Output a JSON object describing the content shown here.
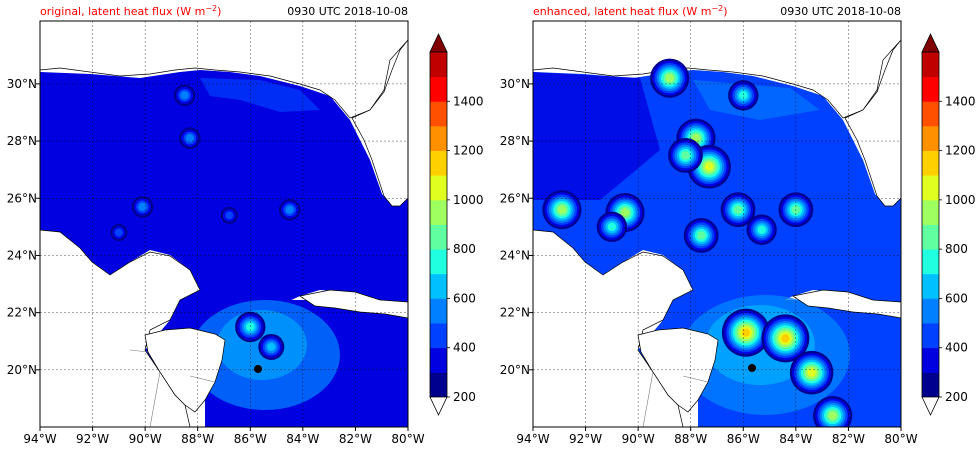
{
  "chart_data": [
    {
      "type": "heatmap",
      "title_left": "original, latent heat flux (W m",
      "title_left_exp": "−2",
      "title_left_end": ")",
      "title_right": "0930 UTC 2018-10-08",
      "xlabel": "",
      "ylabel": "",
      "x_ticks": [
        "94°W",
        "92°W",
        "90°W",
        "88°W",
        "86°W",
        "84°W",
        "82°W",
        "80°W"
      ],
      "y_ticks": [
        "20°N",
        "22°N",
        "24°N",
        "26°N",
        "28°N",
        "30°N"
      ],
      "lon_range": [
        -94,
        -80
      ],
      "lat_range": [
        18.0,
        32.2
      ],
      "grid": true,
      "colorbar": {
        "levels": [
          200,
          300,
          400,
          500,
          600,
          700,
          800,
          900,
          1000,
          1100,
          1200,
          1300,
          1400,
          1500
        ],
        "tick_labels": [
          "200",
          "400",
          "600",
          "800",
          "1000",
          "1200",
          "1400"
        ],
        "colors": [
          "#00008f",
          "#0000e0",
          "#0040ff",
          "#0080ff",
          "#00c0ff",
          "#20ffe0",
          "#60ffa0",
          "#a0ff60",
          "#e0ff20",
          "#ffd000",
          "#ff9000",
          "#ff5000",
          "#ff0000",
          "#c00000"
        ],
        "extend": "both",
        "under_color": "#ffffff",
        "over_color": "#800000"
      },
      "hotspots": [
        {
          "lon": -88.5,
          "lat": 29.6,
          "value": 500
        },
        {
          "lon": -88.3,
          "lat": 28.1,
          "value": 520
        },
        {
          "lon": -90.1,
          "lat": 25.7,
          "value": 520
        },
        {
          "lon": -86.8,
          "lat": 25.4,
          "value": 480
        },
        {
          "lon": -84.5,
          "lat": 25.6,
          "value": 520
        },
        {
          "lon": -91.0,
          "lat": 24.8,
          "value": 450
        },
        {
          "lon": -86.0,
          "lat": 21.5,
          "value": 700
        },
        {
          "lon": -85.2,
          "lat": 20.8,
          "value": 650
        }
      ],
      "hurricane_center": {
        "lon": -85.8,
        "lat": 20.0
      }
    },
    {
      "type": "heatmap",
      "title_left": "enhanced, latent heat flux (W m",
      "title_left_exp": "−2",
      "title_left_end": ")",
      "title_right": "0930 UTC 2018-10-08",
      "xlabel": "",
      "ylabel": "",
      "x_ticks": [
        "94°W",
        "92°W",
        "90°W",
        "88°W",
        "86°W",
        "84°W",
        "82°W",
        "80°W"
      ],
      "y_ticks": [
        "20°N",
        "22°N",
        "24°N",
        "26°N",
        "28°N",
        "30°N"
      ],
      "lon_range": [
        -94,
        -80
      ],
      "lat_range": [
        18.0,
        32.2
      ],
      "grid": true,
      "colorbar": {
        "levels": [
          200,
          300,
          400,
          500,
          600,
          700,
          800,
          900,
          1000,
          1100,
          1200,
          1300,
          1400,
          1500
        ],
        "tick_labels": [
          "200",
          "400",
          "600",
          "800",
          "1000",
          "1200",
          "1400"
        ],
        "colors": [
          "#00008f",
          "#0000e0",
          "#0040ff",
          "#0080ff",
          "#00c0ff",
          "#20ffe0",
          "#60ffa0",
          "#a0ff60",
          "#e0ff20",
          "#ffd000",
          "#ff9000",
          "#ff5000",
          "#ff0000",
          "#c00000"
        ],
        "extend": "both",
        "under_color": "#ffffff",
        "over_color": "#800000"
      },
      "hotspots": [
        {
          "lon": -88.8,
          "lat": 30.2,
          "value": 900
        },
        {
          "lon": -86.0,
          "lat": 29.6,
          "value": 700
        },
        {
          "lon": -87.8,
          "lat": 28.1,
          "value": 900
        },
        {
          "lon": -87.3,
          "lat": 27.1,
          "value": 1000
        },
        {
          "lon": -88.2,
          "lat": 27.5,
          "value": 800
        },
        {
          "lon": -92.9,
          "lat": 25.6,
          "value": 900
        },
        {
          "lon": -90.5,
          "lat": 25.5,
          "value": 900
        },
        {
          "lon": -86.2,
          "lat": 25.6,
          "value": 800
        },
        {
          "lon": -84.0,
          "lat": 25.6,
          "value": 800
        },
        {
          "lon": -87.6,
          "lat": 24.7,
          "value": 800
        },
        {
          "lon": -85.3,
          "lat": 24.9,
          "value": 700
        },
        {
          "lon": -91.0,
          "lat": 25.0,
          "value": 700
        },
        {
          "lon": -85.9,
          "lat": 21.3,
          "value": 1100
        },
        {
          "lon": -84.4,
          "lat": 21.1,
          "value": 1100
        },
        {
          "lon": -83.4,
          "lat": 19.9,
          "value": 1000
        },
        {
          "lon": -82.6,
          "lat": 18.4,
          "value": 900
        }
      ],
      "hurricane_center": {
        "lon": -85.6,
        "lat": 20.1
      }
    }
  ]
}
